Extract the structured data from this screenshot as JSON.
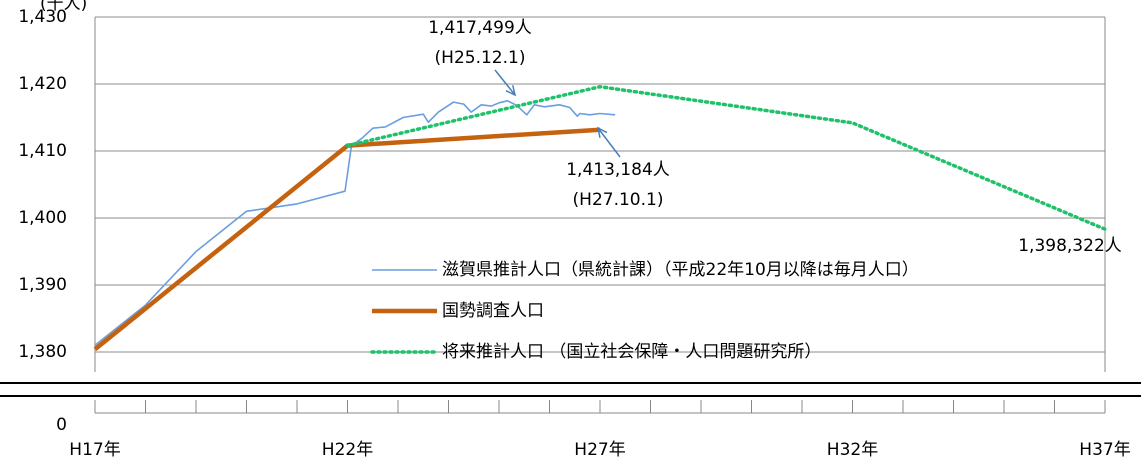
{
  "chart_data": {
    "type": "line",
    "y_unit": "(千人)",
    "broken_axis": true,
    "grid": true,
    "legend": "center",
    "xlim": [
      17,
      37
    ],
    "xticks": [
      {
        "value": 17,
        "label": "H17年"
      },
      {
        "value": 22,
        "label": "H22年"
      },
      {
        "value": 27,
        "label": "H27年"
      },
      {
        "value": 32,
        "label": "H32年"
      },
      {
        "value": 37,
        "label": "H37年"
      }
    ],
    "xminorticks": [
      18,
      19,
      20,
      21,
      23,
      24,
      25,
      26,
      28,
      29,
      30,
      31,
      33,
      34,
      35,
      36
    ],
    "ylim": [
      0,
      1430
    ],
    "yticks": [
      {
        "value": 0,
        "label": "0"
      },
      {
        "value": 1380,
        "label": "1,380"
      },
      {
        "value": 1390,
        "label": "1,390"
      },
      {
        "value": 1400,
        "label": "1,400"
      },
      {
        "value": 1410,
        "label": "1,410"
      },
      {
        "value": 1420,
        "label": "1,420"
      },
      {
        "value": 1430,
        "label": "1,430"
      }
    ],
    "series": [
      {
        "name": "滋賀県推計人口（県統計課）（平成22年10月以降は毎月人口）",
        "color": "#6a9ee0",
        "style": "thin",
        "x": [
          17,
          18,
          19,
          20,
          21,
          21.95,
          22.08,
          22.3,
          22.5,
          22.75,
          23.1,
          23.5,
          23.6,
          23.8,
          24.1,
          24.3,
          24.45,
          24.65,
          24.85,
          25.0,
          25.17,
          25.35,
          25.55,
          25.7,
          25.9,
          26.2,
          26.4,
          26.55,
          26.6,
          26.8,
          27.0,
          27.3
        ],
        "values": [
          1381,
          1387,
          1395,
          1401,
          1402.1,
          1404,
          1410.8,
          1412,
          1413.4,
          1413.6,
          1415,
          1415.5,
          1414.3,
          1415.8,
          1417.3,
          1417,
          1415.8,
          1416.9,
          1416.7,
          1417.2,
          1417.499,
          1416.8,
          1415.4,
          1416.9,
          1416.6,
          1416.9,
          1416.5,
          1415.2,
          1415.6,
          1415.4,
          1415.6,
          1415.4
        ]
      },
      {
        "name": "国勢調査人口",
        "color": "#c5620f",
        "style": "thick",
        "x": [
          17,
          22,
          27
        ],
        "values": [
          1380.4,
          1410.8,
          1413.184
        ]
      },
      {
        "name": "将来推計人口 （国立社会保障・人口問題研究所）",
        "color": "#1fc26a",
        "style": "dotted",
        "x": [
          22,
          27,
          32,
          37
        ],
        "values": [
          1410.8,
          1419.6,
          1414.2,
          1398.322
        ]
      }
    ],
    "annotations": [
      {
        "lines": [
          "1,417,499人",
          "(H25.12.1)"
        ]
      },
      {
        "lines": [
          "1,413,184人",
          "(H27.10.1)"
        ]
      },
      {
        "lines": [
          "1,398,322人"
        ]
      }
    ]
  }
}
